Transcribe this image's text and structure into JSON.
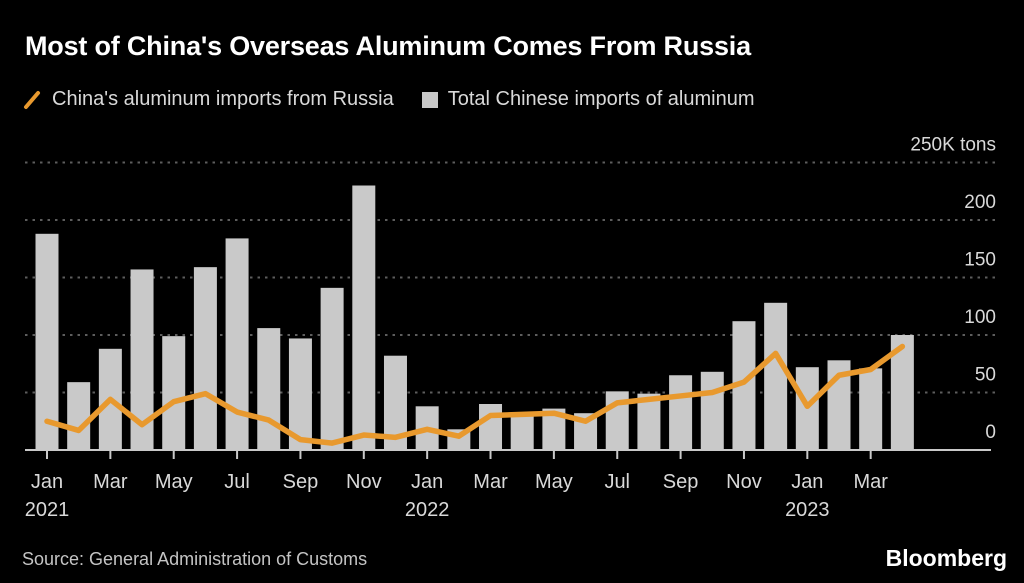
{
  "title": "Most of China's Overseas Aluminum Comes From Russia",
  "legend": {
    "items": [
      {
        "label": "China's aluminum imports from Russia",
        "marker": "line",
        "color": "#E8992E"
      },
      {
        "label": "Total Chinese imports of aluminum",
        "marker": "square",
        "color": "#C9C9C9"
      }
    ]
  },
  "footer": {
    "source": "Source: General Administration of Customs",
    "brand": "Bloomberg"
  },
  "chart_data": {
    "type": "bar+line",
    "title": "Most of China's Overseas Aluminum Comes From Russia",
    "unit_label": "250K tons",
    "ylim": [
      0,
      250
    ],
    "grid": "dashed-horizontal",
    "legend_position": "top",
    "categories": [
      "Jan 2021",
      "Feb 2021",
      "Mar 2021",
      "Apr 2021",
      "May 2021",
      "Jun 2021",
      "Jul 2021",
      "Aug 2021",
      "Sep 2021",
      "Oct 2021",
      "Nov 2021",
      "Dec 2021",
      "Jan 2022",
      "Feb 2022",
      "Mar 2022",
      "Apr 2022",
      "May 2022",
      "Jun 2022",
      "Jul 2022",
      "Aug 2022",
      "Sep 2022",
      "Oct 2022",
      "Nov 2022",
      "Dec 2022",
      "Jan 2023",
      "Feb 2023",
      "Mar 2023",
      "Apr 2023"
    ],
    "series": [
      {
        "name": "Total Chinese imports of aluminum",
        "kind": "bar",
        "color": "#C9C9C9",
        "values": [
          188,
          59,
          88,
          157,
          99,
          159,
          184,
          106,
          97,
          141,
          230,
          82,
          38,
          18,
          40,
          33,
          36,
          32,
          51,
          49,
          65,
          68,
          112,
          128,
          72,
          78,
          71,
          100
        ]
      },
      {
        "name": "China's aluminum imports from Russia",
        "kind": "line",
        "color": "#E8992E",
        "values": [
          25,
          17,
          44,
          22,
          42,
          49,
          33,
          26,
          9,
          6,
          13,
          11,
          18,
          12,
          30,
          31,
          32,
          25,
          41,
          44,
          47,
          50,
          59,
          84,
          38,
          65,
          70,
          90
        ]
      }
    ],
    "y_axis": {
      "unit_label": "250K tons",
      "ticks": [
        0,
        50,
        100,
        150,
        200
      ],
      "grid_values": [
        50,
        100,
        150,
        200,
        250
      ]
    },
    "x_axis": {
      "ticks": [
        {
          "i": 0,
          "label": "Jan",
          "year": "2021"
        },
        {
          "i": 2,
          "label": "Mar"
        },
        {
          "i": 4,
          "label": "May"
        },
        {
          "i": 6,
          "label": "Jul"
        },
        {
          "i": 8,
          "label": "Sep"
        },
        {
          "i": 10,
          "label": "Nov"
        },
        {
          "i": 12,
          "label": "Jan",
          "year": "2022"
        },
        {
          "i": 14,
          "label": "Mar"
        },
        {
          "i": 16,
          "label": "May"
        },
        {
          "i": 18,
          "label": "Jul"
        },
        {
          "i": 20,
          "label": "Sep"
        },
        {
          "i": 22,
          "label": "Nov"
        },
        {
          "i": 24,
          "label": "Jan",
          "year": "2023"
        },
        {
          "i": 26,
          "label": "Mar"
        }
      ]
    }
  }
}
